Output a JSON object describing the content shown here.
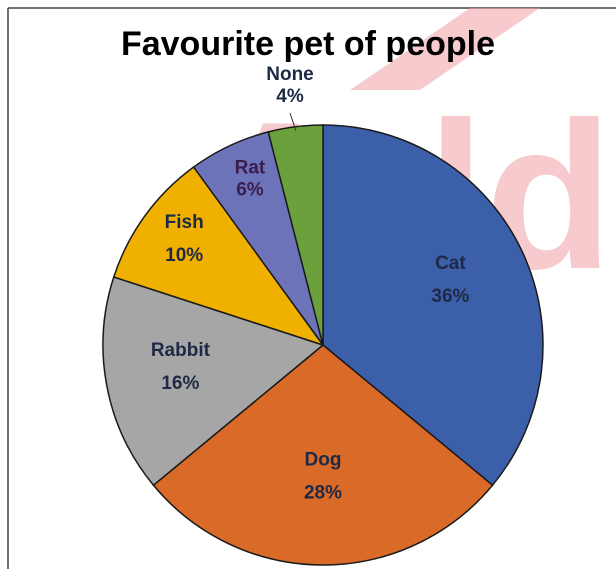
{
  "watermark": {
    "text": "Adda",
    "color": "#f2a0a6"
  },
  "chart_data": {
    "type": "pie",
    "title": "Favourite pet of people",
    "start_angle_deg": 0,
    "direction": "clockwise",
    "slices": [
      {
        "label": "Cat",
        "value": 36,
        "value_label": "36%",
        "color": "#3c5fa9",
        "text_color": "#1e2a45"
      },
      {
        "label": "Dog",
        "value": 28,
        "value_label": "28%",
        "color": "#d96a27",
        "text_color": "#1e2a45"
      },
      {
        "label": "Rabbit",
        "value": 16,
        "value_label": "16%",
        "color": "#a6a6a6",
        "text_color": "#1e2a45"
      },
      {
        "label": "Fish",
        "value": 10,
        "value_label": "10%",
        "color": "#f0b000",
        "text_color": "#1e2a45"
      },
      {
        "label": "Rat",
        "value": 6,
        "value_label": "6%",
        "color": "#6d73b9",
        "text_color": "#3a1d4a"
      },
      {
        "label": "None",
        "value": 4,
        "value_label": "4%",
        "color": "#6aa13c",
        "text_color": "#1e2a45"
      }
    ]
  }
}
